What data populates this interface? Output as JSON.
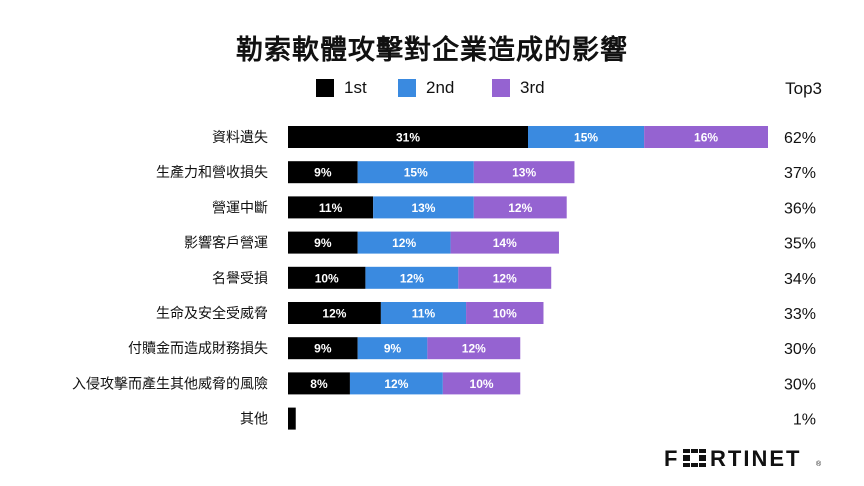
{
  "chart_data": {
    "type": "bar",
    "orientation": "horizontal",
    "stacked": true,
    "title": "勒索軟體攻擊對企業造成的影響",
    "total_label": "Top3",
    "legend_position": "top",
    "grid": false,
    "xlim": [
      0,
      62
    ],
    "categories": [
      "資料遺失",
      "生產力和營收損失",
      "營運中斷",
      "影響客戶營運",
      "名譽受損",
      "生命及安全受威脅",
      "付贖金而造成財務損失",
      "入侵攻擊而產生其他威脅的風險",
      "其他"
    ],
    "series": [
      {
        "name": "1st",
        "color": "#000000",
        "label_color": "#ffffff",
        "values": [
          31,
          9,
          11,
          9,
          10,
          12,
          9,
          8,
          1
        ]
      },
      {
        "name": "2nd",
        "color": "#3a8ae0",
        "label_color": "#ffffff",
        "values": [
          15,
          15,
          13,
          12,
          12,
          11,
          9,
          12,
          0
        ]
      },
      {
        "name": "3rd",
        "color": "#9563d1",
        "label_color": "#ffffff",
        "values": [
          16,
          13,
          12,
          14,
          12,
          10,
          12,
          10,
          0
        ]
      }
    ],
    "totals": [
      62,
      37,
      36,
      35,
      34,
      33,
      30,
      30,
      1
    ],
    "value_suffix": "%"
  },
  "brand": {
    "logo": "FORTINET"
  }
}
